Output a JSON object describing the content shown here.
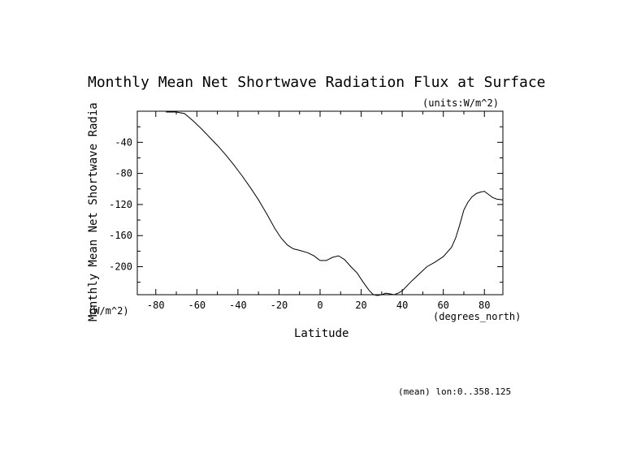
{
  "chart_data": {
    "type": "line",
    "title": "Monthly Mean Net Shortwave Radiation Flux at Surface",
    "units_label": "(units:W/m^2)",
    "xlabel": "Latitude",
    "x_unit_label": "(degrees_north)",
    "ylabel": "Monthly Mean Net Shortwave Radia",
    "y_unit_label": "(W/m^2)",
    "footnote": "(mean) lon:0..358.125",
    "xlim": [
      -89,
      89
    ],
    "ylim": [
      -236,
      0
    ],
    "x_ticks": [
      -80,
      -60,
      -40,
      -20,
      0,
      20,
      40,
      60,
      80
    ],
    "y_ticks": [
      -40,
      -80,
      -120,
      -160,
      -200
    ],
    "grid": false,
    "series": [
      {
        "x": [
          -75,
          -70,
          -66,
          -62,
          -58,
          -54,
          -50,
          -46,
          -42,
          -38,
          -34,
          -30,
          -26,
          -22,
          -19,
          -16,
          -13,
          -10,
          -6,
          -3,
          0,
          3,
          6,
          9,
          12,
          15,
          18,
          21,
          24,
          26,
          28,
          30,
          32,
          34,
          36,
          38,
          40,
          44,
          48,
          52,
          56,
          60,
          64,
          66,
          68,
          70,
          72,
          74,
          76,
          78,
          80,
          82,
          84,
          86,
          89
        ],
        "y": [
          -1,
          -1,
          -3,
          -12,
          -22,
          -33,
          -44,
          -56,
          -69,
          -83,
          -98,
          -114,
          -132,
          -151,
          -163,
          -172,
          -177,
          -179,
          -182,
          -186,
          -192,
          -192,
          -188,
          -186,
          -191,
          -200,
          -208,
          -220,
          -231,
          -236,
          -237,
          -236,
          -234,
          -235,
          -236,
          -234,
          -231,
          -220,
          -210,
          -200,
          -194,
          -187,
          -175,
          -163,
          -146,
          -127,
          -117,
          -110,
          -106,
          -104,
          -103,
          -107,
          -111,
          -113,
          -114
        ]
      }
    ]
  }
}
